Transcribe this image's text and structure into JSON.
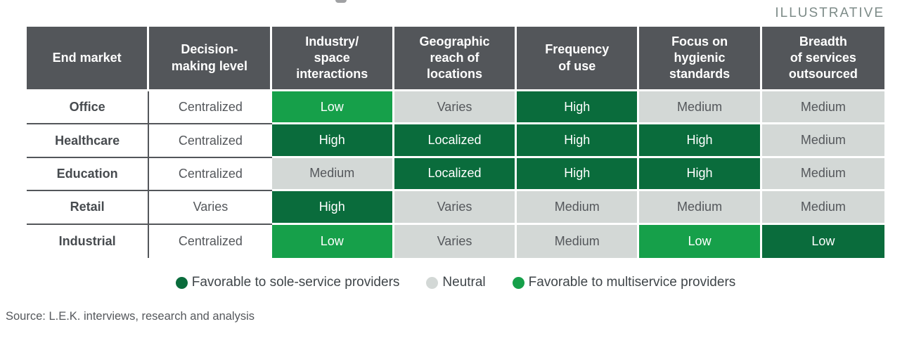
{
  "annotations": {
    "illustrative": "ILLUSTRATIVE",
    "source": "Source: L.E.K. interviews, research and analysis"
  },
  "palette": {
    "header_bg": "#53565A",
    "dark_green": "#0A6C3C",
    "bright_green": "#16A04A",
    "neutral_gray": "#D3D8D6",
    "line": "#53565A",
    "dark_text": "#54575B",
    "bold_text": "#474B4F",
    "legend_text": "#3F4549",
    "source_text": "#55585C",
    "illustrative_text": "#7D8B88"
  },
  "chart_data": {
    "type": "table",
    "columns": [
      "End market",
      "Decision-\nmaking level",
      "Industry/\nspace\ninteractions",
      "Geographic\nreach of\nlocations",
      "Frequency\nof use",
      "Focus on\nhygienic\nstandards",
      "Breadth\nof services\noutsourced"
    ],
    "rows": [
      {
        "end_market": "Office",
        "decision_making_level": "Centralized",
        "ratings": [
          {
            "value": "Low",
            "favor": "multiservice"
          },
          {
            "value": "Varies",
            "favor": "neutral"
          },
          {
            "value": "High",
            "favor": "sole"
          },
          {
            "value": "Medium",
            "favor": "neutral"
          },
          {
            "value": "Medium",
            "favor": "neutral"
          }
        ]
      },
      {
        "end_market": "Healthcare",
        "decision_making_level": "Centralized",
        "ratings": [
          {
            "value": "High",
            "favor": "sole"
          },
          {
            "value": "Localized",
            "favor": "sole"
          },
          {
            "value": "High",
            "favor": "sole"
          },
          {
            "value": "High",
            "favor": "sole"
          },
          {
            "value": "Medium",
            "favor": "neutral"
          }
        ]
      },
      {
        "end_market": "Education",
        "decision_making_level": "Centralized",
        "ratings": [
          {
            "value": "Medium",
            "favor": "neutral"
          },
          {
            "value": "Localized",
            "favor": "sole"
          },
          {
            "value": "High",
            "favor": "sole"
          },
          {
            "value": "High",
            "favor": "sole"
          },
          {
            "value": "Medium",
            "favor": "neutral"
          }
        ]
      },
      {
        "end_market": "Retail",
        "decision_making_level": "Varies",
        "ratings": [
          {
            "value": "High",
            "favor": "sole"
          },
          {
            "value": "Varies",
            "favor": "neutral"
          },
          {
            "value": "Medium",
            "favor": "neutral"
          },
          {
            "value": "Medium",
            "favor": "neutral"
          },
          {
            "value": "Medium",
            "favor": "neutral"
          }
        ]
      },
      {
        "end_market": "Industrial",
        "decision_making_level": "Centralized",
        "ratings": [
          {
            "value": "Low",
            "favor": "multiservice"
          },
          {
            "value": "Varies",
            "favor": "neutral"
          },
          {
            "value": "Medium",
            "favor": "neutral"
          },
          {
            "value": "Low",
            "favor": "multiservice"
          },
          {
            "value": "Low",
            "favor": "sole"
          }
        ]
      }
    ],
    "legend": [
      {
        "label": "Favorable to sole-service providers",
        "favor": "sole"
      },
      {
        "label": "Neutral",
        "favor": "neutral"
      },
      {
        "label": "Favorable to multiservice providers",
        "favor": "multiservice"
      }
    ]
  }
}
